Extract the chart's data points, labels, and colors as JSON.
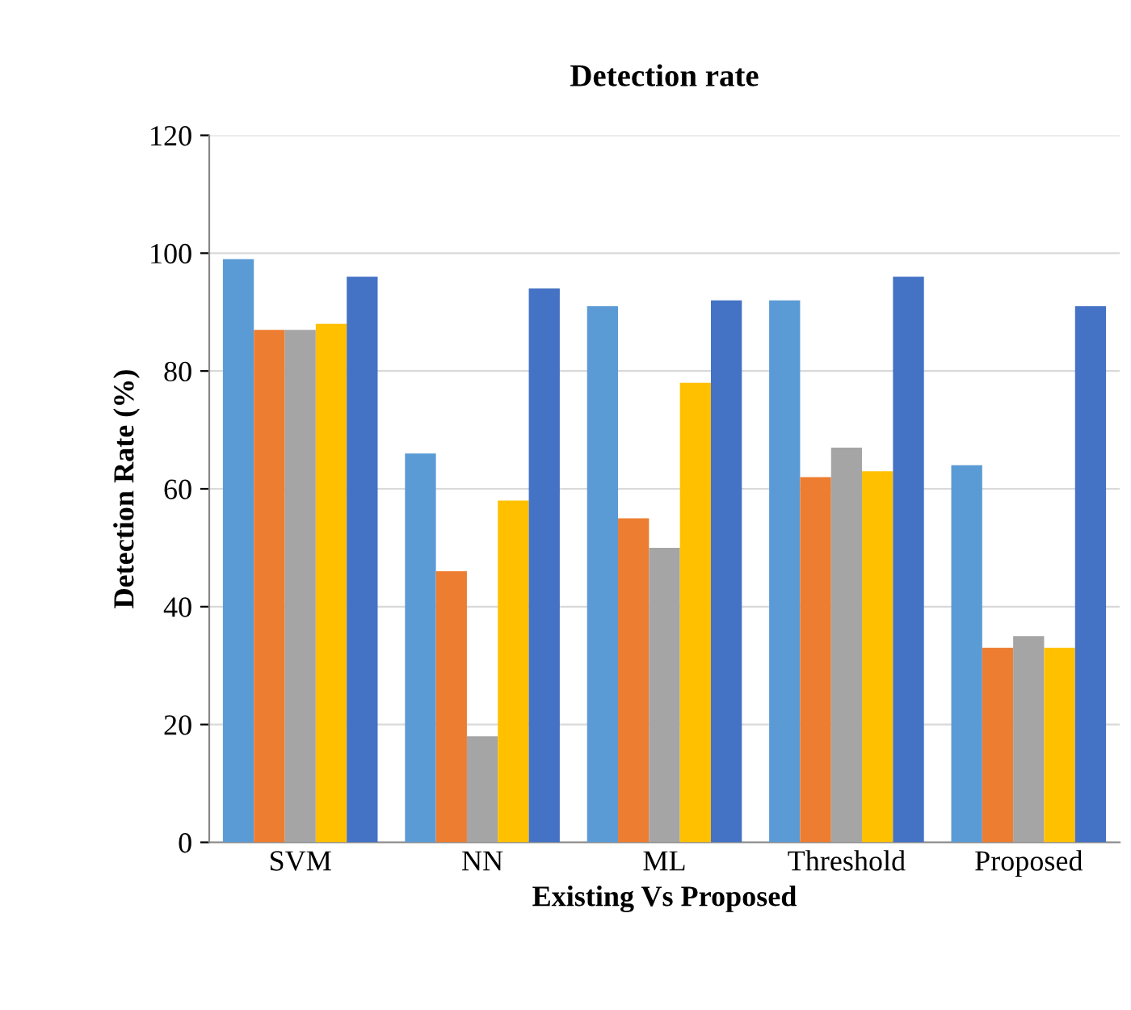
{
  "chart_data": {
    "type": "bar",
    "title": "Detection rate",
    "xlabel": "Existing Vs Proposed",
    "ylabel": "Detection Rate (%)",
    "categories": [
      "SVM",
      "NN",
      "ML",
      "Threshold",
      "Proposed"
    ],
    "series": [
      {
        "color": "#5b9bd5",
        "values": [
          99,
          66,
          91,
          92,
          64
        ]
      },
      {
        "color": "#ed7d31",
        "values": [
          87,
          46,
          55,
          62,
          33
        ]
      },
      {
        "color": "#a5a5a5",
        "values": [
          87,
          18,
          50,
          67,
          35
        ]
      },
      {
        "color": "#ffc000",
        "values": [
          88,
          58,
          78,
          63,
          33
        ]
      },
      {
        "color": "#4472c4",
        "values": [
          96,
          94,
          92,
          96,
          91
        ]
      }
    ],
    "ylim": [
      0,
      120
    ],
    "yticks": [
      0,
      20,
      40,
      60,
      80,
      100,
      120
    ],
    "grid": "y",
    "legend": false
  }
}
